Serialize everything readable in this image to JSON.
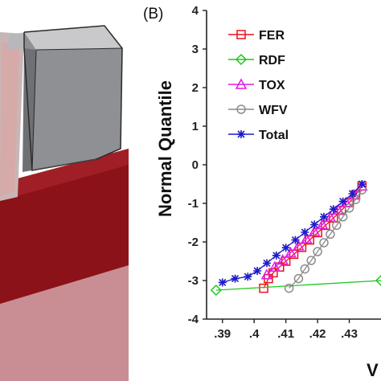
{
  "panel_label": "(B)",
  "chart_data": {
    "type": "scatter",
    "title": "",
    "xlabel": "V",
    "ylabel": "Normal Quantile",
    "xlim": [
      0.385,
      0.44
    ],
    "ylim": [
      -4,
      4
    ],
    "x_ticks": [
      ".39",
      ".4",
      ".41",
      ".42",
      ".43"
    ],
    "x_tick_values": [
      0.39,
      0.4,
      0.41,
      0.42,
      0.43
    ],
    "y_ticks": [
      "4",
      "3",
      "2",
      "1",
      "0",
      "-1",
      "-2",
      "-3",
      "-4"
    ],
    "y_tick_values": [
      4,
      3,
      2,
      1,
      0,
      -1,
      -2,
      -3,
      -4
    ],
    "legend_position": "top-left",
    "series": [
      {
        "name": "FER",
        "color": "#e8141c",
        "marker": "square",
        "x": [
          0.403,
          0.4045,
          0.406,
          0.408,
          0.41,
          0.4125,
          0.415,
          0.4175,
          0.42,
          0.4225,
          0.425,
          0.4275,
          0.43,
          0.432,
          0.434
        ],
        "y": [
          -3.2,
          -2.95,
          -2.8,
          -2.65,
          -2.5,
          -2.32,
          -2.14,
          -1.95,
          -1.76,
          -1.57,
          -1.38,
          -1.18,
          -0.98,
          -0.78,
          -0.55
        ]
      },
      {
        "name": "RDF",
        "color": "#1ec81e",
        "marker": "diamond",
        "x": [
          0.388,
          0.44
        ],
        "y": [
          -3.25,
          -3.0
        ]
      },
      {
        "name": "TOX",
        "color": "#e619e6",
        "marker": "triangle",
        "x": [
          0.404,
          0.4065,
          0.409,
          0.4115,
          0.414,
          0.4165,
          0.419,
          0.4215,
          0.424,
          0.4265,
          0.429,
          0.4315,
          0.434
        ],
        "y": [
          -2.85,
          -2.65,
          -2.47,
          -2.28,
          -2.1,
          -1.92,
          -1.73,
          -1.55,
          -1.36,
          -1.17,
          -0.98,
          -0.78,
          -0.55
        ]
      },
      {
        "name": "WFV",
        "color": "#8c8c8c",
        "marker": "circle",
        "x": [
          0.411,
          0.414,
          0.416,
          0.418,
          0.42,
          0.422,
          0.424,
          0.426,
          0.428,
          0.43,
          0.432,
          0.434
        ],
        "y": [
          -3.2,
          -2.95,
          -2.7,
          -2.48,
          -2.25,
          -2.02,
          -1.8,
          -1.57,
          -1.35,
          -1.12,
          -0.9,
          -0.65
        ]
      },
      {
        "name": "Total",
        "color": "#1c1cc8",
        "marker": "star",
        "x": [
          0.39,
          0.394,
          0.398,
          0.401,
          0.404,
          0.407,
          0.41,
          0.413,
          0.416,
          0.419,
          0.422,
          0.425,
          0.428,
          0.431,
          0.434
        ],
        "y": [
          -3.05,
          -2.95,
          -2.9,
          -2.75,
          -2.55,
          -2.35,
          -2.15,
          -1.95,
          -1.75,
          -1.55,
          -1.35,
          -1.15,
          -0.95,
          -0.75,
          -0.5
        ]
      }
    ]
  }
}
